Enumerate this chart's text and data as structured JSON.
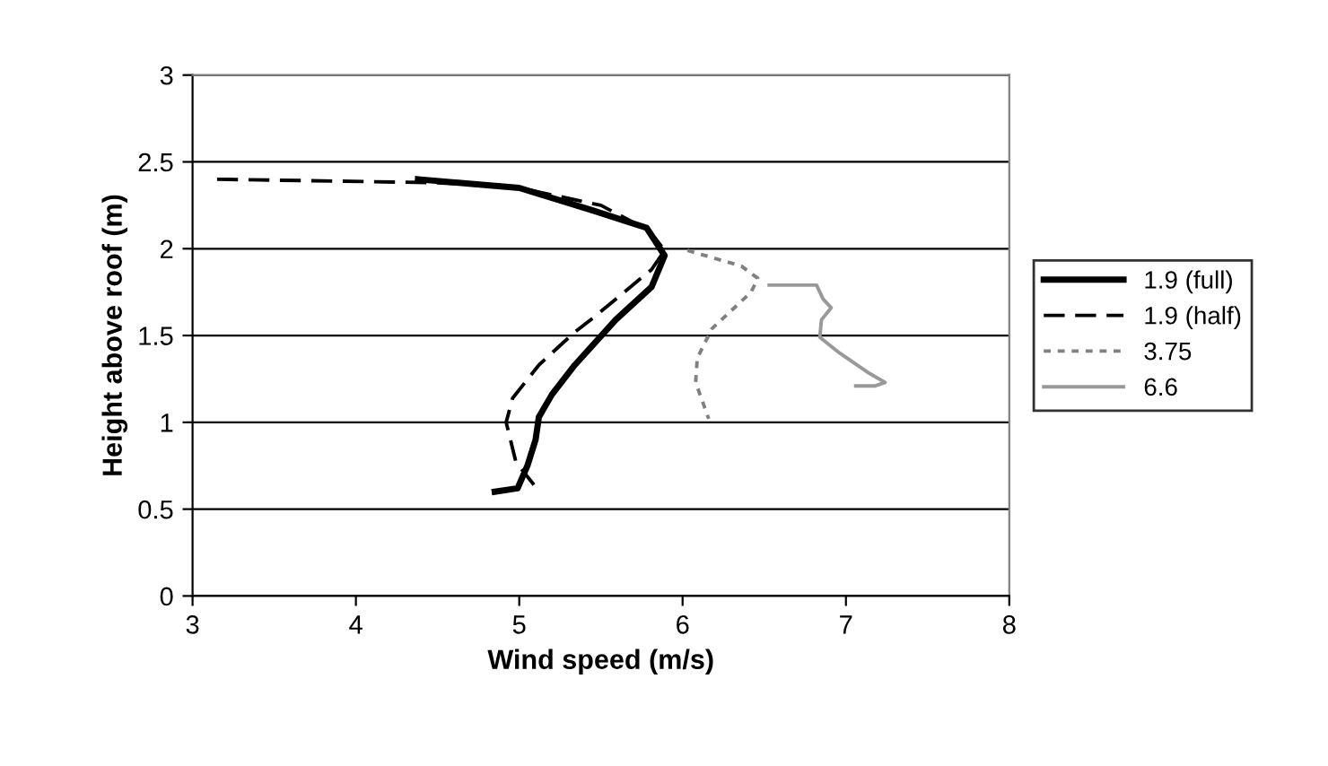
{
  "chart_data": {
    "type": "line",
    "xlabel": "Wind speed (m/s)",
    "ylabel": "Height above roof (m)",
    "xlim": [
      3,
      8
    ],
    "xticks": [
      3,
      4,
      5,
      6,
      7,
      8
    ],
    "ylim": [
      0,
      3
    ],
    "yticks": [
      0,
      0.5,
      1,
      1.5,
      2,
      2.5,
      3
    ],
    "grid": "y",
    "legend": "right",
    "marker": "none",
    "series": [
      {
        "name": "1.9 (full)",
        "color": "#000000",
        "line_style": "solid",
        "x": [
          4.38,
          5.0,
          5.45,
          5.78,
          5.89,
          5.81,
          5.59,
          5.34,
          5.2,
          5.12,
          5.1,
          5.05,
          4.99,
          4.85
        ],
        "values": [
          2.4,
          2.35,
          2.22,
          2.12,
          1.96,
          1.78,
          1.59,
          1.33,
          1.16,
          1.03,
          0.9,
          0.75,
          0.62,
          0.6
        ]
      },
      {
        "name": "1.9 (half)",
        "color": "#000000",
        "line_style": "dashed",
        "x": [
          3.15,
          4.5,
          5.0,
          5.5,
          5.8,
          5.89,
          5.81,
          5.45,
          5.34,
          5.12,
          4.96,
          4.92,
          4.98,
          5.09
        ],
        "values": [
          2.4,
          2.38,
          2.35,
          2.25,
          2.1,
          1.99,
          1.88,
          1.6,
          1.52,
          1.33,
          1.14,
          1.0,
          0.77,
          0.64
        ]
      },
      {
        "name": "3.75",
        "color": "#808080",
        "line_style": "dotted",
        "x": [
          6.03,
          6.36,
          6.46,
          6.42,
          6.18,
          6.09,
          6.08,
          6.16
        ],
        "values": [
          1.99,
          1.9,
          1.83,
          1.75,
          1.54,
          1.37,
          1.23,
          1.02
        ]
      },
      {
        "name": "6.6",
        "color": "#999999",
        "line_style": "solid",
        "x": [
          6.53,
          6.82,
          6.86,
          6.91,
          6.85,
          6.84,
          6.96,
          7.13,
          7.24,
          7.18,
          7.06
        ],
        "values": [
          1.79,
          1.79,
          1.71,
          1.66,
          1.59,
          1.49,
          1.4,
          1.29,
          1.23,
          1.21,
          1.21
        ]
      }
    ]
  }
}
